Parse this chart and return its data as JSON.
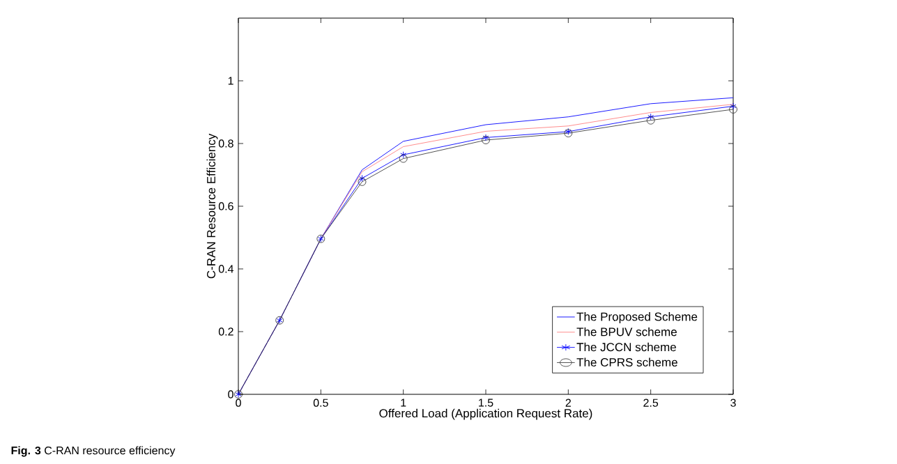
{
  "chart_data": {
    "type": "line",
    "xlabel": "Offered Load (Application Request Rate)",
    "ylabel": "C-RAN Resource Efficiency",
    "annotations": [
      "**Fig. 3** C-RAN resource efficiency"
    ],
    "x": [
      0,
      0.25,
      0.5,
      0.75,
      1,
      1.5,
      2,
      2.5,
      3
    ],
    "series": [
      {
        "name": "The Proposed Scheme",
        "color": "#0000ff",
        "marker": "none",
        "values": [
          0,
          0.236,
          0.496,
          0.716,
          0.807,
          0.86,
          0.885,
          0.927,
          0.946
        ]
      },
      {
        "name": "The BPUV scheme",
        "color": "#ff8080",
        "marker": "none",
        "values": [
          0,
          0.236,
          0.496,
          0.71,
          0.79,
          0.839,
          0.856,
          0.899,
          0.925
        ]
      },
      {
        "name": "The JCCN scheme",
        "color": "#0000ff",
        "marker": "cross",
        "values": [
          0,
          0.236,
          0.496,
          0.689,
          0.764,
          0.819,
          0.838,
          0.885,
          0.919
        ]
      },
      {
        "name": "The CPRS scheme",
        "color": "#404040",
        "marker": "circle",
        "values": [
          0,
          0.236,
          0.496,
          0.678,
          0.752,
          0.811,
          0.833,
          0.874,
          0.909
        ]
      }
    ],
    "xlim": [
      0,
      3
    ],
    "xticks": [
      0,
      0.5,
      1,
      1.5,
      2,
      2.5,
      3
    ],
    "ylim": [
      0,
      1.2
    ],
    "yticks": [
      0,
      0.2,
      0.4,
      0.6,
      0.8,
      1
    ],
    "grid": false,
    "legend": "bottom right",
    "line_style": "solid"
  }
}
